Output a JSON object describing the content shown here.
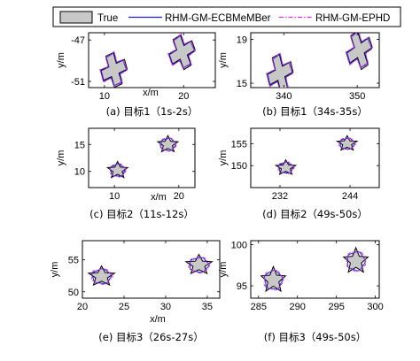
{
  "legend": {
    "entries": [
      {
        "label": "True",
        "style": "patch",
        "fill": "#c8c8c8",
        "edge": "#000000"
      },
      {
        "label": "RHM-GM-ECBMeMBer",
        "style": "solid",
        "color": "#1f1fcc"
      },
      {
        "label": "RHM-GM-EPHD",
        "style": "dashdot",
        "color": "#d633d6"
      }
    ]
  },
  "chart_data": [
    {
      "type": "extended-target-tracking",
      "caption": "(a) 目标1（1s-2s）",
      "xlabel": "x/m",
      "ylabel": "y/m",
      "xlim": [
        8,
        24
      ],
      "ylim": [
        -51.6,
        -46.3
      ],
      "xticks": [
        10,
        20
      ],
      "yticks": [
        -51,
        -47
      ],
      "shape": "cross",
      "targets": [
        {
          "cx": 11.2,
          "cy": -49.9,
          "size": 3.2,
          "size_y": 1.0,
          "angle": 20
        },
        {
          "cx": 19.8,
          "cy": -48.2,
          "size": 3.2,
          "size_y": 1.0,
          "angle": 25
        }
      ]
    },
    {
      "type": "extended-target-tracking",
      "caption": "(b) 目标1（34s-35s）",
      "xlabel": "",
      "ylabel": "y/m",
      "xlim": [
        335.5,
        353
      ],
      "ylim": [
        14.6,
        19.6
      ],
      "xticks": [
        340,
        350
      ],
      "yticks": [
        15,
        19
      ],
      "shape": "cross",
      "targets": [
        {
          "cx": 339.5,
          "cy": 15.9,
          "size": 3.4,
          "size_y": 1.0,
          "angle": 20
        },
        {
          "cx": 350.3,
          "cy": 18.0,
          "size": 3.4,
          "size_y": 1.0,
          "angle": 25
        }
      ]
    },
    {
      "type": "extended-target-tracking",
      "caption": "(c) 目标2（11s-12s）",
      "xlabel": "x/m",
      "ylabel": "y/m",
      "xlim": [
        6,
        22.5
      ],
      "ylim": [
        7,
        18
      ],
      "xticks": [
        10,
        20
      ],
      "yticks": [
        10,
        15
      ],
      "shape": "star",
      "targets": [
        {
          "cx": 10.5,
          "cy": 10.2,
          "size": 3.3,
          "size_y": 3.3,
          "angle": 0
        },
        {
          "cx": 18.3,
          "cy": 15.0,
          "size": 3.3,
          "size_y": 3.3,
          "angle": 0
        }
      ]
    },
    {
      "type": "extended-target-tracking",
      "caption": "(d) 目标2（49s-50s）",
      "xlabel": "",
      "ylabel": "y/m",
      "xlim": [
        227,
        249
      ],
      "ylim": [
        145,
        158.5
      ],
      "xticks": [
        232,
        244
      ],
      "yticks": [
        150,
        155
      ],
      "shape": "star",
      "targets": [
        {
          "cx": 233.0,
          "cy": 149.5,
          "size": 3.6,
          "size_y": 3.6,
          "angle": 0
        },
        {
          "cx": 243.5,
          "cy": 155.0,
          "size": 3.6,
          "size_y": 3.6,
          "angle": 0
        }
      ]
    },
    {
      "type": "extended-target-tracking",
      "caption": "(e) 目标3（26s-27s）",
      "xlabel": "x/m",
      "ylabel": "y/m",
      "xlim": [
        20,
        36.5
      ],
      "ylim": [
        49,
        58
      ],
      "xticks": [
        20,
        25,
        30,
        35
      ],
      "yticks": [
        50,
        55
      ],
      "shape": "star",
      "targets": [
        {
          "cx": 22.3,
          "cy": 52.4,
          "size": 3.3,
          "size_y": 3.3,
          "angle": 0
        },
        {
          "cx": 34.0,
          "cy": 54.2,
          "size": 3.3,
          "size_y": 3.3,
          "angle": 0
        }
      ]
    },
    {
      "type": "extended-target-tracking",
      "caption": "(f) 目标3（49s-50s）",
      "xlabel": "",
      "ylabel": "y/m",
      "xlim": [
        284,
        300.5
      ],
      "ylim": [
        93.5,
        100.5
      ],
      "xticks": [
        285,
        290,
        295,
        300
      ],
      "yticks": [
        95,
        100
      ],
      "shape": "star",
      "targets": [
        {
          "cx": 286.9,
          "cy": 95.7,
          "size": 3.3,
          "size_y": 3.3,
          "angle": 0
        },
        {
          "cx": 297.5,
          "cy": 98.0,
          "size": 3.3,
          "size_y": 3.3,
          "angle": 0
        }
      ]
    }
  ]
}
